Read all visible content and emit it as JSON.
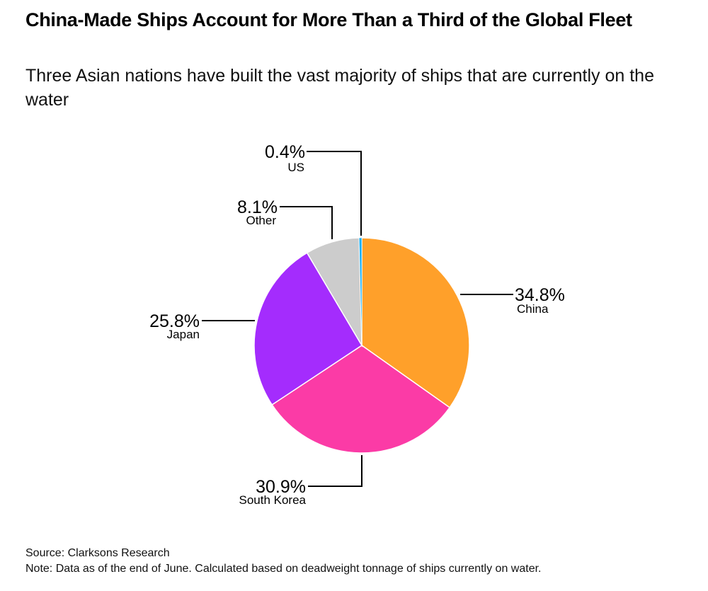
{
  "title": "China-Made Ships Account for More Than a Third of the Global Fleet",
  "subtitle": "Three Asian nations have built the vast majority of ships that are currently on the water",
  "source": "Source: Clarksons Research",
  "note": "Note: Data as of the end of June. Calculated based on deadweight tonnage of ships currently on water.",
  "chart_data": {
    "type": "pie",
    "title": "China-Made Ships Account for More Than a Third of the Global Fleet",
    "start": "top, clockwise",
    "slices": [
      {
        "name": "China",
        "value": 34.8,
        "label": "34.8%",
        "color": "#ffa02a"
      },
      {
        "name": "South Korea",
        "value": 30.9,
        "label": "30.9%",
        "color": "#fb3ba6"
      },
      {
        "name": "Japan",
        "value": 25.8,
        "label": "25.8%",
        "color": "#a42cfd"
      },
      {
        "name": "Other",
        "value": 8.1,
        "label": "8.1%",
        "color": "#cccccc"
      },
      {
        "name": "US",
        "value": 0.4,
        "label": "0.4%",
        "color": "#1eb1f5"
      }
    ]
  }
}
